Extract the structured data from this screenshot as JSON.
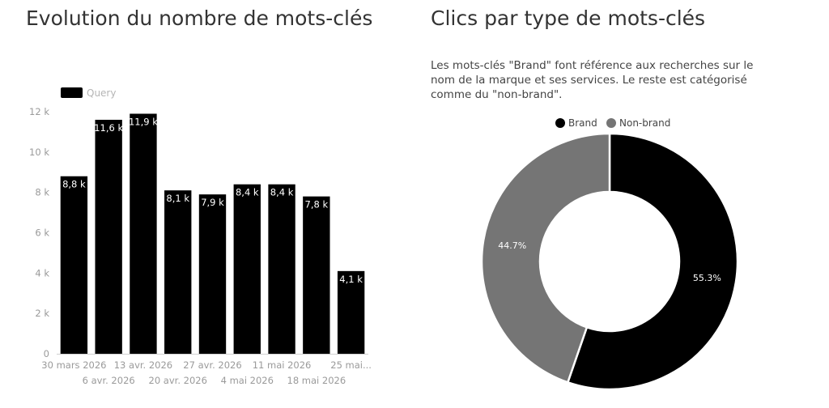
{
  "left_panel": {
    "title": "Evolution du nombre de mots-clés"
  },
  "right_panel": {
    "title": "Clics par type de mots-clés",
    "description": "Les mots-clés \"Brand\" font référence aux recherches sur le nom de la marque et ses services. Le reste est catégorisé comme du \"non-brand\"."
  },
  "chart_data": [
    {
      "type": "bar",
      "title": "Evolution du nombre de mots-clés",
      "categories": [
        "30 mars 2026",
        "6 avr. 2026",
        "13 avr. 2026",
        "20 avr. 2026",
        "27 avr. 2026",
        "4 mai 2026",
        "11 mai 2026",
        "18 mai 2026",
        "25 mai..."
      ],
      "series": [
        {
          "name": "Query",
          "values": [
            8800,
            11600,
            11900,
            8100,
            7900,
            8400,
            8400,
            7800,
            4100
          ],
          "data_labels": [
            "8,8 k",
            "11,6 k",
            "11,9 k",
            "8,1 k",
            "7,9 k",
            "8,4 k",
            "8,4 k",
            "7,8 k",
            "4,1 k"
          ],
          "color": "#000000"
        }
      ],
      "ylim": [
        0,
        12000
      ],
      "yticks": [
        0,
        2000,
        4000,
        6000,
        8000,
        10000,
        12000
      ],
      "ytick_labels": [
        "0",
        "2 k",
        "4 k",
        "6 k",
        "8 k",
        "10 k",
        "12 k"
      ],
      "grid": false,
      "legend": "top-left"
    },
    {
      "type": "pie",
      "title": "Clics par type de mots-clés",
      "donut": true,
      "slices": [
        {
          "label": "Brand",
          "value": 55.3,
          "display": "55.3%",
          "color": "#000000"
        },
        {
          "label": "Non-brand",
          "value": 44.7,
          "display": "44.7%",
          "color": "#757575"
        }
      ],
      "legend": "top"
    }
  ]
}
